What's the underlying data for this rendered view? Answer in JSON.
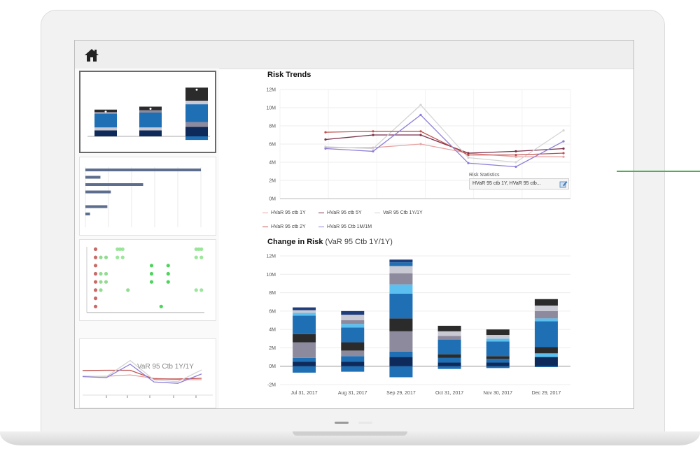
{
  "colors": {
    "accent": "#4caf50",
    "blue": "#1f6fb5",
    "navy": "#0e2a5a",
    "dark": "#2b2b2b"
  },
  "topbar": {
    "home_icon": "home-icon"
  },
  "sidebar": {
    "thumb4_label": "VaR 95 Ctb 1Y/1Y"
  },
  "risk_trends": {
    "title": "Risk Trends",
    "tooltip_title": "Risk Statistics",
    "tooltip_text": "HVaR 95 ctb 1Y, HVaR 95 ctb...",
    "legend": [
      {
        "label": "HVaR 95 ctb 1Y",
        "color": "#e8a3a3"
      },
      {
        "label": "HVaR 95 ctb 5Y",
        "color": "#7a2f4a"
      },
      {
        "label": "VaR 95 Ctb 1Y/1Y",
        "color": "#d4d4d4"
      },
      {
        "label": "HVaR 95 ctb 2Y",
        "color": "#c0504d"
      },
      {
        "label": "HVaR 95 Ctb 1M/1M",
        "color": "#8c7ed9"
      }
    ]
  },
  "change_in_risk": {
    "title": "Change in Risk",
    "subtitle": "(VaR 95 Ctb 1Y/1Y)"
  },
  "chart_data": [
    {
      "type": "line",
      "title": "Risk Trends",
      "yticks": [
        "0M",
        "2M",
        "4M",
        "6M",
        "8M",
        "10M",
        "12M"
      ],
      "ylim": [
        0,
        12
      ],
      "x": [
        1,
        2,
        3,
        4,
        5,
        6
      ],
      "series": [
        {
          "name": "HVaR 95 ctb 1Y",
          "color": "#e8a3a3",
          "values": [
            5.6,
            5.6,
            6.0,
            5.0,
            4.6,
            4.6
          ]
        },
        {
          "name": "HVaR 95 ctb 5Y",
          "color": "#7a2f4a",
          "values": [
            6.5,
            7.0,
            7.0,
            5.0,
            5.2,
            5.5
          ]
        },
        {
          "name": "VaR 95 Ctb 1Y/1Y",
          "color": "#d4d4d4",
          "values": [
            5.7,
            5.5,
            10.3,
            4.5,
            4.0,
            7.5
          ]
        },
        {
          "name": "HVaR 95 ctb 2Y",
          "color": "#c0504d",
          "values": [
            7.3,
            7.4,
            7.4,
            4.8,
            4.8,
            5.0
          ]
        },
        {
          "name": "HVaR 95 Ctb 1M/1M",
          "color": "#8c7ed9",
          "values": [
            5.5,
            5.2,
            9.2,
            3.9,
            3.5,
            6.3
          ]
        }
      ]
    },
    {
      "type": "bar",
      "title": "Change in Risk",
      "subtitle": "(VaR 95 Ctb 1Y/1Y)",
      "stacked": true,
      "yticks": [
        "-2M",
        "0M",
        "2M",
        "4M",
        "6M",
        "8M",
        "10M",
        "12M"
      ],
      "ylim": [
        -2,
        12
      ],
      "categories": [
        "Jul 31, 2017",
        "Aug 31, 2017",
        "Sep 29, 2017",
        "Oct 31, 2017",
        "Nov 30, 2017",
        "Dec 29, 2017"
      ],
      "segments": [
        [
          {
            "v": -0.7,
            "c": "#1f6fb5"
          },
          {
            "v": 0.5,
            "c": "#0e2a5a"
          },
          {
            "v": 0.4,
            "c": "#1f6fb5"
          },
          {
            "v": 1.7,
            "c": "#8e8a9e"
          },
          {
            "v": 0.9,
            "c": "#2b2b2b"
          },
          {
            "v": 1.5,
            "c": "#1f6fb5"
          },
          {
            "v": 0.5,
            "c": "#1f6fb5"
          },
          {
            "v": 0.3,
            "c": "#5bc0f0"
          },
          {
            "v": 0.3,
            "c": "#c9c9d4"
          },
          {
            "v": 0.3,
            "c": "#1f3d7a"
          }
        ],
        [
          {
            "v": -0.6,
            "c": "#1f6fb5"
          },
          {
            "v": 0.5,
            "c": "#0e2a5a"
          },
          {
            "v": 0.6,
            "c": "#1f6fb5"
          },
          {
            "v": 0.6,
            "c": "#8e8a9e"
          },
          {
            "v": 0.9,
            "c": "#2b2b2b"
          },
          {
            "v": 1.6,
            "c": "#1f6fb5"
          },
          {
            "v": 0.4,
            "c": "#5bc0f0"
          },
          {
            "v": 0.4,
            "c": "#8e8a9e"
          },
          {
            "v": 0.6,
            "c": "#c9c9d4"
          },
          {
            "v": 0.4,
            "c": "#1f3d7a"
          }
        ],
        [
          {
            "v": -1.2,
            "c": "#1f6fb5"
          },
          {
            "v": 1.0,
            "c": "#0e2a5a"
          },
          {
            "v": 0.6,
            "c": "#1f6fb5"
          },
          {
            "v": 2.2,
            "c": "#8e8a9e"
          },
          {
            "v": 1.4,
            "c": "#2b2b2b"
          },
          {
            "v": 2.7,
            "c": "#1f6fb5"
          },
          {
            "v": 1.0,
            "c": "#5bc0f0"
          },
          {
            "v": 1.2,
            "c": "#8e8a9e"
          },
          {
            "v": 0.8,
            "c": "#c9c9d4"
          },
          {
            "v": 0.4,
            "c": "#1f6fb5"
          },
          {
            "v": 0.3,
            "c": "#1f3d7a"
          }
        ],
        [
          {
            "v": -0.3,
            "c": "#1f6fb5"
          },
          {
            "v": 0.4,
            "c": "#0e2a5a"
          },
          {
            "v": 0.5,
            "c": "#1f6fb5"
          },
          {
            "v": 0.4,
            "c": "#2b2b2b"
          },
          {
            "v": 1.6,
            "c": "#1f6fb5"
          },
          {
            "v": 0.4,
            "c": "#8e8a9e"
          },
          {
            "v": 0.5,
            "c": "#c9c9d4"
          },
          {
            "v": 0.6,
            "c": "#2b2b2b"
          }
        ],
        [
          {
            "v": -0.2,
            "c": "#1f6fb5"
          },
          {
            "v": 0.4,
            "c": "#0e2a5a"
          },
          {
            "v": 0.4,
            "c": "#1f6fb5"
          },
          {
            "v": 0.3,
            "c": "#2b2b2b"
          },
          {
            "v": 1.6,
            "c": "#1f6fb5"
          },
          {
            "v": 0.3,
            "c": "#5bc0f0"
          },
          {
            "v": 0.4,
            "c": "#c9c9d4"
          },
          {
            "v": 0.6,
            "c": "#2b2b2b"
          }
        ],
        [
          {
            "v": -0.1,
            "c": "#1f6fb5"
          },
          {
            "v": 1.0,
            "c": "#0e2a5a"
          },
          {
            "v": 0.4,
            "c": "#5bc0f0"
          },
          {
            "v": 0.7,
            "c": "#2b2b2b"
          },
          {
            "v": 2.8,
            "c": "#1f6fb5"
          },
          {
            "v": 0.3,
            "c": "#5bc0f0"
          },
          {
            "v": 0.8,
            "c": "#8e8a9e"
          },
          {
            "v": 0.6,
            "c": "#c9c9d4"
          },
          {
            "v": 0.7,
            "c": "#2b2b2b"
          }
        ]
      ]
    },
    {
      "type": "bar",
      "stacked": true,
      "categories": [
        "",
        "",
        ""
      ],
      "segments": [
        [
          {
            "v": 1.0,
            "c": "#0e2a5a"
          },
          {
            "v": 0.5,
            "c": "#c9c9d4"
          },
          {
            "v": 2.3,
            "c": "#1f6fb5"
          },
          {
            "v": 0.3,
            "c": "#8e8a9e"
          },
          {
            "v": 0.4,
            "c": "#2b2b2b"
          }
        ],
        [
          {
            "v": 1.0,
            "c": "#0e2a5a"
          },
          {
            "v": 0.5,
            "c": "#c9c9d4"
          },
          {
            "v": 2.5,
            "c": "#1f6fb5"
          },
          {
            "v": 0.4,
            "c": "#8e8a9e"
          },
          {
            "v": 0.6,
            "c": "#2b2b2b"
          }
        ],
        [
          {
            "v": -0.6,
            "c": "#1f6fb5"
          },
          {
            "v": 1.6,
            "c": "#0e2a5a"
          },
          {
            "v": 0.8,
            "c": "#8e8a9e"
          },
          {
            "v": 3.0,
            "c": "#1f6fb5"
          },
          {
            "v": 0.6,
            "c": "#c9c9d4"
          },
          {
            "v": 2.2,
            "c": "#2b2b2b"
          }
        ]
      ]
    },
    {
      "type": "bar",
      "orientation": "horizontal",
      "values": [
        10,
        1.3,
        5.0,
        2.2,
        0,
        1.9,
        0.4
      ]
    },
    {
      "type": "scatter",
      "points": [
        {
          "x": 1,
          "y": 1,
          "c": "#c0504d"
        },
        {
          "x": 1,
          "y": 2,
          "c": "#c0504d"
        },
        {
          "x": 1,
          "y": 3,
          "c": "#c0504d"
        },
        {
          "x": 1,
          "y": 4,
          "c": "#c0504d"
        },
        {
          "x": 1,
          "y": 5,
          "c": "#c0504d"
        },
        {
          "x": 1,
          "y": 6,
          "c": "#c0504d"
        },
        {
          "x": 1,
          "y": 7,
          "c": "#c0504d"
        },
        {
          "x": 1,
          "y": 8,
          "c": "#c0504d"
        },
        {
          "x": 1.6,
          "y": 2,
          "c": "#7fd67f"
        },
        {
          "x": 1.6,
          "y": 4,
          "c": "#7fd67f"
        },
        {
          "x": 1.6,
          "y": 5,
          "c": "#7fd67f"
        },
        {
          "x": 1.6,
          "y": 6,
          "c": "#7fd67f"
        },
        {
          "x": 2.2,
          "y": 2,
          "c": "#7fd67f"
        },
        {
          "x": 2.2,
          "y": 4,
          "c": "#7fd67f"
        },
        {
          "x": 2.2,
          "y": 5,
          "c": "#7fd67f"
        },
        {
          "x": 3.5,
          "y": 1,
          "c": "#8be28b"
        },
        {
          "x": 3.5,
          "y": 2,
          "c": "#8be28b"
        },
        {
          "x": 3.8,
          "y": 1,
          "c": "#8be28b"
        },
        {
          "x": 4.1,
          "y": 1,
          "c": "#8be28b"
        },
        {
          "x": 4.1,
          "y": 2,
          "c": "#8be28b"
        },
        {
          "x": 4.7,
          "y": 6,
          "c": "#7fd67f"
        },
        {
          "x": 7.4,
          "y": 3,
          "c": "#2ecc40"
        },
        {
          "x": 7.4,
          "y": 4,
          "c": "#2ecc40"
        },
        {
          "x": 7.4,
          "y": 5,
          "c": "#2ecc40"
        },
        {
          "x": 9.3,
          "y": 3,
          "c": "#2ecc40"
        },
        {
          "x": 9.3,
          "y": 4,
          "c": "#2ecc40"
        },
        {
          "x": 9.3,
          "y": 5,
          "c": "#2ecc40"
        },
        {
          "x": 8.5,
          "y": 8,
          "c": "#2ecc40"
        },
        {
          "x": 12.5,
          "y": 1,
          "c": "#8be28b"
        },
        {
          "x": 12.8,
          "y": 1,
          "c": "#8be28b"
        },
        {
          "x": 13.1,
          "y": 1,
          "c": "#8be28b"
        },
        {
          "x": 12.5,
          "y": 2,
          "c": "#8be28b"
        },
        {
          "x": 13.1,
          "y": 2,
          "c": "#8be28b"
        },
        {
          "x": 12.5,
          "y": 6,
          "c": "#8be28b"
        },
        {
          "x": 13.1,
          "y": 6,
          "c": "#8be28b"
        }
      ]
    },
    {
      "type": "line",
      "series": [
        {
          "color": "#e8a3a3",
          "values": [
            5.6,
            5.6,
            6.0,
            5.0,
            4.6,
            4.6
          ]
        },
        {
          "color": "#c0504d",
          "values": [
            7.3,
            7.4,
            7.4,
            4.8,
            4.8,
            5.0
          ]
        },
        {
          "color": "#d4d4d4",
          "values": [
            5.7,
            5.5,
            10.3,
            4.5,
            4.0,
            7.5
          ]
        },
        {
          "color": "#8c7ed9",
          "values": [
            5.5,
            5.2,
            9.2,
            3.9,
            3.5,
            6.3
          ]
        }
      ]
    }
  ]
}
